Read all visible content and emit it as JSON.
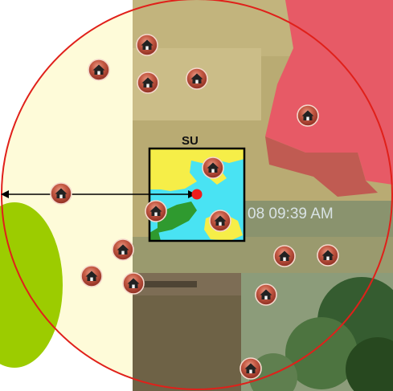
{
  "diagram": {
    "su_label": "SU",
    "photo_timestamp": "08 09:39 AM",
    "house_icon": "house-icon",
    "colors": {
      "circle_outline": "#e0201a",
      "area_fill": "#fefbd9",
      "green_blob": "#9ccc00",
      "su_water": "#49e3f3",
      "su_yellow": "#f6ee48",
      "su_green": "#2f9a2f",
      "house_badge": "#b84a3a",
      "center_dot": "#ee1b1b",
      "arrow": "#000000"
    }
  }
}
